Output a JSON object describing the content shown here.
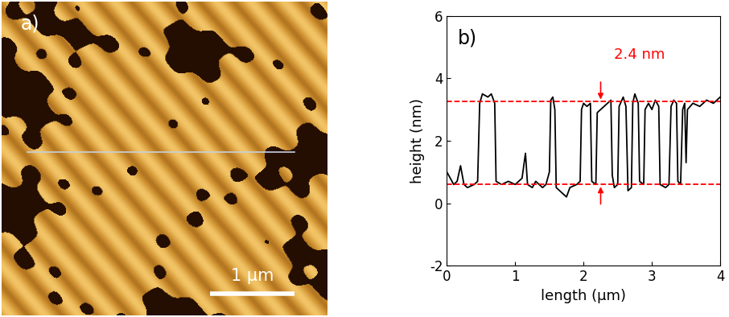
{
  "image_panel": {
    "label": "a)",
    "scale_bar": "1 µm"
  },
  "chart_data": {
    "type": "line",
    "panel_label": "b)",
    "xlabel": "length (µm)",
    "ylabel": "height (nm)",
    "color": "#000000",
    "x": [
      0,
      0.05,
      0.1,
      0.15,
      0.2,
      0.25,
      0.3,
      0.4,
      0.45,
      0.48,
      0.52,
      0.6,
      0.65,
      0.7,
      0.72,
      0.8,
      0.9,
      1.0,
      1.1,
      1.15,
      1.18,
      1.25,
      1.3,
      1.4,
      1.45,
      1.5,
      1.52,
      1.55,
      1.58,
      1.6,
      1.7,
      1.75,
      1.8,
      1.9,
      1.95,
      1.97,
      2.0,
      2.05,
      2.1,
      2.12,
      2.18,
      2.2,
      2.25,
      2.3,
      2.35,
      2.4,
      2.42,
      2.45,
      2.5,
      2.52,
      2.58,
      2.62,
      2.65,
      2.7,
      2.72,
      2.75,
      2.8,
      2.82,
      2.88,
      2.9,
      2.95,
      3.0,
      3.05,
      3.1,
      3.12,
      3.2,
      3.25,
      3.28,
      3.32,
      3.36,
      3.38,
      3.42,
      3.45,
      3.48,
      3.5,
      3.52,
      3.6,
      3.7,
      3.8,
      3.9,
      4.0
    ],
    "values": [
      1.0,
      0.8,
      0.6,
      0.7,
      1.2,
      0.6,
      0.5,
      0.6,
      0.7,
      3.2,
      3.5,
      3.4,
      3.5,
      3.2,
      0.7,
      0.6,
      0.7,
      0.6,
      0.8,
      1.6,
      0.6,
      0.5,
      0.7,
      0.5,
      0.6,
      1.0,
      3.3,
      3.4,
      3.0,
      0.5,
      0.3,
      0.2,
      0.5,
      0.6,
      0.7,
      3.0,
      3.2,
      3.1,
      3.2,
      0.7,
      0.6,
      2.9,
      3.0,
      3.1,
      3.2,
      3.3,
      0.9,
      0.5,
      0.6,
      3.1,
      3.4,
      3.1,
      0.4,
      0.5,
      3.2,
      3.5,
      3.2,
      0.7,
      0.6,
      3.0,
      3.2,
      3.0,
      3.3,
      3.1,
      0.6,
      0.5,
      0.6,
      3.1,
      3.3,
      3.2,
      0.7,
      0.6,
      3.0,
      3.2,
      1.3,
      3.0,
      3.2,
      3.1,
      3.3,
      3.2,
      3.4
    ],
    "xlim": [
      0,
      4
    ],
    "xticks": [
      0,
      1,
      2,
      3,
      4
    ],
    "ylim": [
      -2,
      6
    ],
    "yticks": [
      -2,
      0,
      2,
      4,
      6
    ],
    "reference_lines": [
      3.25,
      0.6
    ],
    "annotations": [
      {
        "text": "2.4 nm",
        "x": 2.25
      }
    ]
  }
}
